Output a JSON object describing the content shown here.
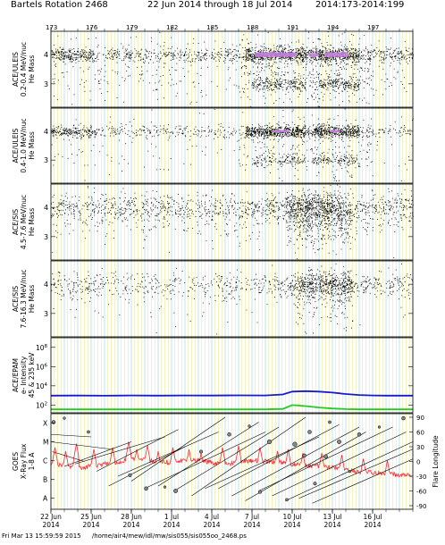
{
  "header": {
    "title": "Bartels Rotation 2468",
    "date_range": "22 Jun 2014 through 18 Jul 2014",
    "doy_range": "2014:173-2014:199"
  },
  "footer": {
    "timestamp": "Fri Mar 13 15:59:59 2015",
    "path": "/home/air4/mew/idl/mw/sis055/sis055oo_2468.ps"
  },
  "colors": {
    "grid_yellow": "#e8e89a",
    "grid_cyan": "#a8dfe6",
    "ions_dots": "#000000",
    "dense_core": "#c77fe0",
    "epam_low": "#1a1acc",
    "epam_high": "#22cc22",
    "xray": "#ff2a2a",
    "flare_lines": "#000000"
  },
  "chart_data": {
    "type": "scatter",
    "x_axis": {
      "range_doy": [
        173,
        200
      ],
      "top_tick_labels": [
        "173",
        "176",
        "179",
        "182",
        "185",
        "188",
        "191",
        "194",
        "197"
      ],
      "top_tick_values": [
        173,
        176,
        179,
        182,
        185,
        188,
        191,
        194,
        197
      ],
      "bottom_tick_labels": [
        {
          "day": "22 Jun",
          "year": "2014",
          "doy": 173
        },
        {
          "day": "25 Jun",
          "year": "2014",
          "doy": 176
        },
        {
          "day": "28 Jun",
          "year": "2014",
          "doy": 179
        },
        {
          "day": "1 Jul",
          "year": "2014",
          "doy": 182
        },
        {
          "day": "4 Jul",
          "year": "2014",
          "doy": 185
        },
        {
          "day": "7 Jul",
          "year": "2014",
          "doy": 188
        },
        {
          "day": "10 Jul",
          "year": "2014",
          "doy": 191
        },
        {
          "day": "13 Jul",
          "year": "2014",
          "doy": 194
        },
        {
          "day": "16 Jul",
          "year": "2014",
          "doy": 197
        }
      ]
    },
    "panels": [
      {
        "id": "uleis-low",
        "ylabel": [
          "ACE/ULEIS",
          "0.2-0.4 MeV/nuc",
          "He Mass"
        ],
        "ticks": [
          "4",
          "3"
        ],
        "tick_values": [
          4,
          3
        ],
        "ylim": [
          2.2,
          4.8
        ],
        "bands": [
          {
            "center": 4.0,
            "spread": 0.12,
            "density": [
              [
                173,
                176,
                0.6
              ],
              [
                176,
                187.5,
                0.25
              ],
              [
                187.5,
                192,
                1.0
              ],
              [
                192,
                192.6,
                0.6
              ],
              [
                192.6,
                196,
                1.0
              ],
              [
                196,
                200,
                0.3
              ]
            ]
          },
          {
            "center": 3.0,
            "spread": 0.12,
            "density": [
              [
                188,
                192,
                0.4
              ],
              [
                192.5,
                196,
                0.45
              ]
            ]
          },
          {
            "center": 3.5,
            "spread": 0.6,
            "density": [
              [
                173,
                187,
                0.15
              ],
              [
                187,
                197,
                0.45
              ],
              [
                197,
                200,
                0.15
              ]
            ]
          }
        ],
        "core": [
          {
            "x0": 188.2,
            "x1": 191.3,
            "y": 4.0,
            "half": 0.08
          },
          {
            "x0": 192.2,
            "x1": 193.0,
            "y": 4.0,
            "half": 0.06
          },
          {
            "x0": 193.4,
            "x1": 195.2,
            "y": 4.0,
            "half": 0.08
          }
        ]
      },
      {
        "id": "uleis-high",
        "ylabel": [
          "ACE/ULEIS",
          "0.4-1.0 MeV/nuc",
          "He Mass"
        ],
        "ticks": [
          "4",
          "3"
        ],
        "tick_values": [
          4,
          3
        ],
        "ylim": [
          2.2,
          4.8
        ],
        "bands": [
          {
            "center": 4.0,
            "spread": 0.1,
            "density": [
              [
                173,
                176.5,
                0.5
              ],
              [
                176.5,
                187.5,
                0.15
              ],
              [
                187.5,
                192,
                1.0
              ],
              [
                192,
                192.6,
                0.4
              ],
              [
                192.6,
                196,
                1.0
              ],
              [
                196,
                200,
                0.15
              ]
            ]
          },
          {
            "center": 3.0,
            "spread": 0.1,
            "density": [
              [
                188,
                192,
                0.25
              ],
              [
                192.5,
                196,
                0.3
              ]
            ]
          },
          {
            "center": 3.5,
            "spread": 0.6,
            "density": [
              [
                173,
                187,
                0.06
              ],
              [
                187,
                197,
                0.25
              ],
              [
                197,
                200,
                0.06
              ]
            ]
          }
        ],
        "core": [
          {
            "x0": 189.5,
            "x1": 190.8,
            "y": 4.0,
            "half": 0.04
          },
          {
            "x0": 193.8,
            "x1": 194.6,
            "y": 4.0,
            "half": 0.04
          }
        ]
      },
      {
        "id": "sis-low",
        "ylabel": [
          "ACE/SIS",
          "4.5-7.6 MeV/nuc",
          "He Mass"
        ],
        "ticks": [
          "4",
          "3"
        ],
        "tick_values": [
          4,
          3
        ],
        "ylim": [
          2.2,
          4.8
        ],
        "bands": [
          {
            "center": 4.0,
            "spread": 0.25,
            "density": [
              [
                173,
                189,
                0.3
              ],
              [
                189,
                191,
                0.6
              ],
              [
                191,
                195,
                1.0
              ],
              [
                195,
                200,
                0.35
              ]
            ]
          },
          {
            "center": 3.6,
            "spread": 0.5,
            "density": [
              [
                173,
                189,
                0.12
              ],
              [
                190.5,
                195.5,
                0.8
              ],
              [
                195.5,
                200,
                0.12
              ]
            ]
          }
        ],
        "core": []
      },
      {
        "id": "sis-high",
        "ylabel": [
          "ACE/SIS",
          "7.6-16.3 MeV/nuc",
          "He Mass"
        ],
        "ticks": [
          "4",
          "3"
        ],
        "tick_values": [
          4,
          3
        ],
        "ylim": [
          2.2,
          4.8
        ],
        "bands": [
          {
            "center": 4.0,
            "spread": 0.2,
            "density": [
              [
                173,
                190,
                0.2
              ],
              [
                190,
                191.5,
                0.4
              ],
              [
                191.5,
                195.5,
                0.9
              ],
              [
                195.5,
                200,
                0.25
              ]
            ]
          },
          {
            "center": 3.6,
            "spread": 0.5,
            "density": [
              [
                173,
                190,
                0.05
              ],
              [
                191,
                195.5,
                0.4
              ],
              [
                195.5,
                200,
                0.05
              ]
            ]
          }
        ],
        "core": []
      }
    ],
    "epam": {
      "ylabel": [
        "ACE/EPAM",
        "e- Intensity",
        "45 & 235 keV"
      ],
      "yscale": "log",
      "ticks": [
        "10^8",
        "10^6",
        "10^4",
        "10^2"
      ],
      "tick_exponents": [
        8,
        6,
        4,
        2
      ],
      "ylim_exp": [
        1.2,
        9.0
      ],
      "series": [
        {
          "name": "45 keV",
          "color": "#1a1acc",
          "x": [
            173,
            175,
            177,
            179,
            181,
            183,
            185,
            187,
            189,
            190.3,
            191,
            192,
            193,
            194,
            195,
            196,
            197,
            198,
            200
          ],
          "y_exp": [
            2.98,
            2.99,
            2.97,
            3.0,
            2.98,
            3.0,
            2.99,
            3.01,
            3.0,
            3.1,
            3.4,
            3.45,
            3.4,
            3.3,
            3.15,
            3.05,
            3.0,
            2.98,
            2.98
          ]
        },
        {
          "name": "235 keV",
          "color": "#22cc22",
          "x": [
            173,
            175,
            177,
            179,
            181,
            183,
            185,
            187,
            189,
            190.3,
            191,
            192,
            193,
            194,
            195,
            196,
            197,
            198,
            200
          ],
          "y_exp": [
            1.55,
            1.55,
            1.55,
            1.55,
            1.55,
            1.55,
            1.55,
            1.55,
            1.55,
            1.6,
            2.0,
            1.9,
            1.75,
            1.65,
            1.58,
            1.55,
            1.55,
            1.55,
            1.55
          ]
        }
      ]
    },
    "goes": {
      "ylabel": [
        "GOES",
        "X-Ray Flux",
        "1-8 A"
      ],
      "left_ticks": [
        "X",
        "M",
        "C",
        "B",
        "A"
      ],
      "left_tick_exponents": [
        -4,
        -5,
        -6,
        -7,
        -8
      ],
      "ylim_exp": [
        -8.6,
        -3.5
      ],
      "right_label": "Flare Longitude",
      "right_ticks": [
        "90",
        "60",
        "30",
        "0",
        "-30",
        "-60",
        "-90"
      ],
      "right_tick_values": [
        90,
        60,
        30,
        0,
        -30,
        -60,
        -90
      ],
      "xray_base": [
        [
          173,
          -6.3
        ],
        [
          174,
          -6.2
        ],
        [
          175,
          -6.4
        ],
        [
          176,
          -6.3
        ],
        [
          177,
          -6.2
        ],
        [
          178,
          -6.1
        ],
        [
          179,
          -5.9
        ],
        [
          180,
          -6.0
        ],
        [
          181,
          -6.05
        ],
        [
          182,
          -6.1
        ],
        [
          183,
          -6.0
        ],
        [
          184,
          -6.0
        ],
        [
          185,
          -6.1
        ],
        [
          186,
          -6.2
        ],
        [
          187,
          -6.1
        ],
        [
          188,
          -6.0
        ],
        [
          189,
          -6.05
        ],
        [
          190,
          -6.1
        ],
        [
          191,
          -6.2
        ],
        [
          192,
          -6.25
        ],
        [
          193,
          -6.3
        ],
        [
          194,
          -6.35
        ],
        [
          195,
          -6.5
        ],
        [
          196,
          -6.6
        ],
        [
          197,
          -6.65
        ],
        [
          198,
          -6.7
        ],
        [
          199,
          -6.75
        ],
        [
          200,
          -6.8
        ]
      ],
      "xray_spikes": [
        [
          173.3,
          -5.3
        ],
        [
          174.1,
          -5.5
        ],
        [
          174.9,
          -5.1
        ],
        [
          176.2,
          -5.4
        ],
        [
          177.6,
          -5.3
        ],
        [
          178.8,
          -5.0
        ],
        [
          179.4,
          -5.4
        ],
        [
          180.2,
          -5.2
        ],
        [
          181.0,
          -5.5
        ],
        [
          182.1,
          -5.3
        ],
        [
          183.3,
          -5.4
        ],
        [
          184.2,
          -5.6
        ],
        [
          185.8,
          -5.3
        ],
        [
          187.0,
          -5.2
        ],
        [
          188.6,
          -5.3
        ],
        [
          189.9,
          -5.5
        ],
        [
          190.7,
          -5.4
        ],
        [
          191.8,
          -5.6
        ],
        [
          193.2,
          -5.6
        ],
        [
          194.7,
          -5.7
        ],
        [
          196.3,
          -5.9
        ],
        [
          198.1,
          -6.0
        ]
      ],
      "flare_tracks": [
        [
          173.0,
          55,
          176.0,
          50
        ],
        [
          173.0,
          40,
          177.5,
          25
        ],
        [
          173.1,
          20,
          175.5,
          0
        ],
        [
          174.0,
          -10,
          179.0,
          40
        ],
        [
          174.8,
          -5,
          181.5,
          50
        ],
        [
          176.4,
          -20,
          182.5,
          65
        ],
        [
          177.3,
          -50,
          183.0,
          30
        ],
        [
          178.0,
          -30,
          185.5,
          60
        ],
        [
          179.0,
          -40,
          186.0,
          90
        ],
        [
          180.0,
          -55,
          189.0,
          60
        ],
        [
          181.0,
          -50,
          188.5,
          80
        ],
        [
          182.2,
          -60,
          190.0,
          70
        ],
        [
          183.5,
          -70,
          192.0,
          90
        ],
        [
          184.5,
          -55,
          193.0,
          50
        ],
        [
          185.5,
          -55,
          194.5,
          75
        ],
        [
          186.5,
          -70,
          196.0,
          70
        ],
        [
          187.5,
          -80,
          196.5,
          60
        ],
        [
          188.5,
          -60,
          198.5,
          70
        ],
        [
          189.5,
          -70,
          199.5,
          60
        ],
        [
          190.5,
          -80,
          200.0,
          40
        ],
        [
          191.5,
          -75,
          200.0,
          25
        ],
        [
          192.5,
          -85,
          200.0,
          5
        ]
      ],
      "flare_points": [
        [
          173.2,
          80,
          2.0
        ],
        [
          174.0,
          88,
          1.4
        ],
        [
          175.8,
          60,
          1.6
        ],
        [
          178.9,
          -28,
          1.8
        ],
        [
          180.1,
          -55,
          2.0
        ],
        [
          181.5,
          -52,
          1.4
        ],
        [
          182.3,
          -60,
          2.2
        ],
        [
          184.2,
          20,
          1.8
        ],
        [
          186.3,
          55,
          2.0
        ],
        [
          187.8,
          72,
          1.4
        ],
        [
          188.6,
          -62,
          1.8
        ],
        [
          189.3,
          40,
          2.4
        ],
        [
          190.6,
          -78,
          1.6
        ],
        [
          191.2,
          35,
          2.4
        ],
        [
          191.9,
          12,
          2.0
        ],
        [
          192.3,
          60,
          2.0
        ],
        [
          192.7,
          -45,
          1.8
        ],
        [
          193.5,
          10,
          2.2
        ],
        [
          193.8,
          80,
          1.6
        ],
        [
          194.5,
          40,
          2.2
        ],
        [
          195.3,
          -20,
          1.4
        ],
        [
          196.0,
          55,
          2.0
        ],
        [
          197.5,
          70,
          1.4
        ],
        [
          199.3,
          88,
          2.0
        ]
      ]
    }
  }
}
